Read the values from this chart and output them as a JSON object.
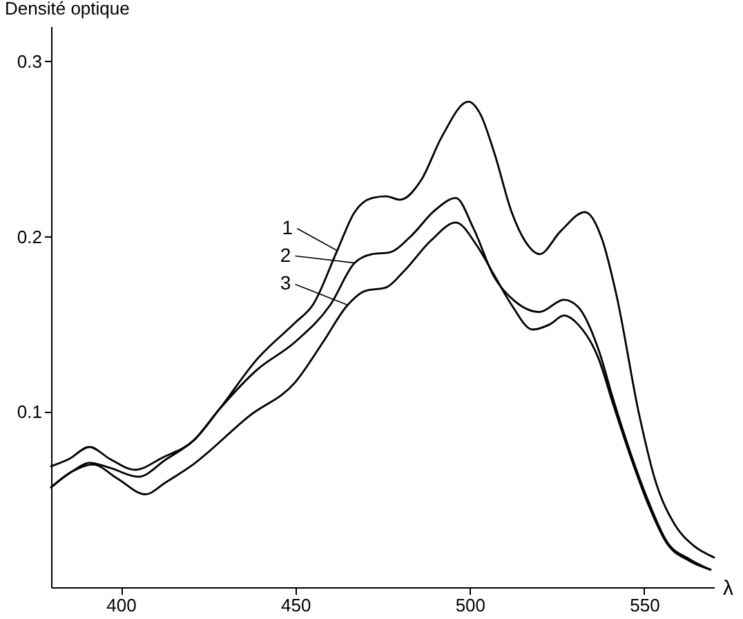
{
  "chart_data": {
    "type": "line",
    "ylabel": "Densité optique",
    "xlabel": "λ",
    "xlim": [
      380,
      570
    ],
    "ylim": [
      0,
      0.32
    ],
    "xticks": [
      400,
      450,
      500,
      550
    ],
    "yticks": [
      0.1,
      0.2,
      0.3
    ],
    "grid": false,
    "legend": "left",
    "marker": "none",
    "line_style": "solid",
    "series": [
      {
        "name": "1",
        "color": "#000000",
        "x": [
          380,
          385,
          391,
          397,
          404,
          412,
          421,
          428,
          439,
          450,
          455,
          462,
          467,
          472,
          476,
          480,
          486,
          492,
          499.6,
          503,
          507,
          512,
          516,
          520,
          526,
          533,
          538,
          542,
          548.6,
          553,
          559,
          564,
          570
        ],
        "values": [
          0.069,
          0.073,
          0.08,
          0.073,
          0.067,
          0.074,
          0.084,
          0.101,
          0.13,
          0.151,
          0.161,
          0.192,
          0.214,
          0.222,
          0.223,
          0.221,
          0.232,
          0.257,
          0.277,
          0.27,
          0.248,
          0.214,
          0.197,
          0.19,
          0.203,
          0.214,
          0.198,
          0.167,
          0.098,
          0.062,
          0.035,
          0.024,
          0.017
        ]
      },
      {
        "name": "2",
        "color": "#000000",
        "x": [
          380,
          386,
          391,
          397,
          405,
          413,
          421,
          428,
          439,
          450,
          460,
          467,
          472,
          477,
          483,
          490,
          496,
          501,
          507,
          513,
          520,
          527,
          531,
          537,
          541,
          546,
          551,
          556.5,
          563,
          569
        ],
        "values": [
          0.057,
          0.066,
          0.071,
          0.068,
          0.063,
          0.073,
          0.084,
          0.101,
          0.124,
          0.14,
          0.161,
          0.185,
          0.19,
          0.191,
          0.2,
          0.215,
          0.222,
          0.205,
          0.177,
          0.163,
          0.157,
          0.164,
          0.16,
          0.135,
          0.108,
          0.077,
          0.05,
          0.026,
          0.016,
          0.01
        ]
      },
      {
        "name": "3",
        "color": "#000000",
        "x": [
          380,
          386,
          392,
          399,
          407,
          413,
          420,
          437,
          450,
          458,
          465,
          470,
          476,
          481,
          489,
          496,
          502,
          507,
          512,
          518,
          523,
          527,
          531,
          537,
          541,
          546,
          551,
          556.5,
          563,
          569
        ],
        "values": [
          0.057,
          0.066,
          0.07,
          0.062,
          0.053,
          0.06,
          0.069,
          0.098,
          0.117,
          0.14,
          0.161,
          0.169,
          0.171,
          0.18,
          0.198,
          0.208,
          0.195,
          0.178,
          0.161,
          0.147,
          0.15,
          0.155,
          0.15,
          0.13,
          0.105,
          0.075,
          0.048,
          0.025,
          0.015,
          0.01
        ]
      }
    ]
  }
}
